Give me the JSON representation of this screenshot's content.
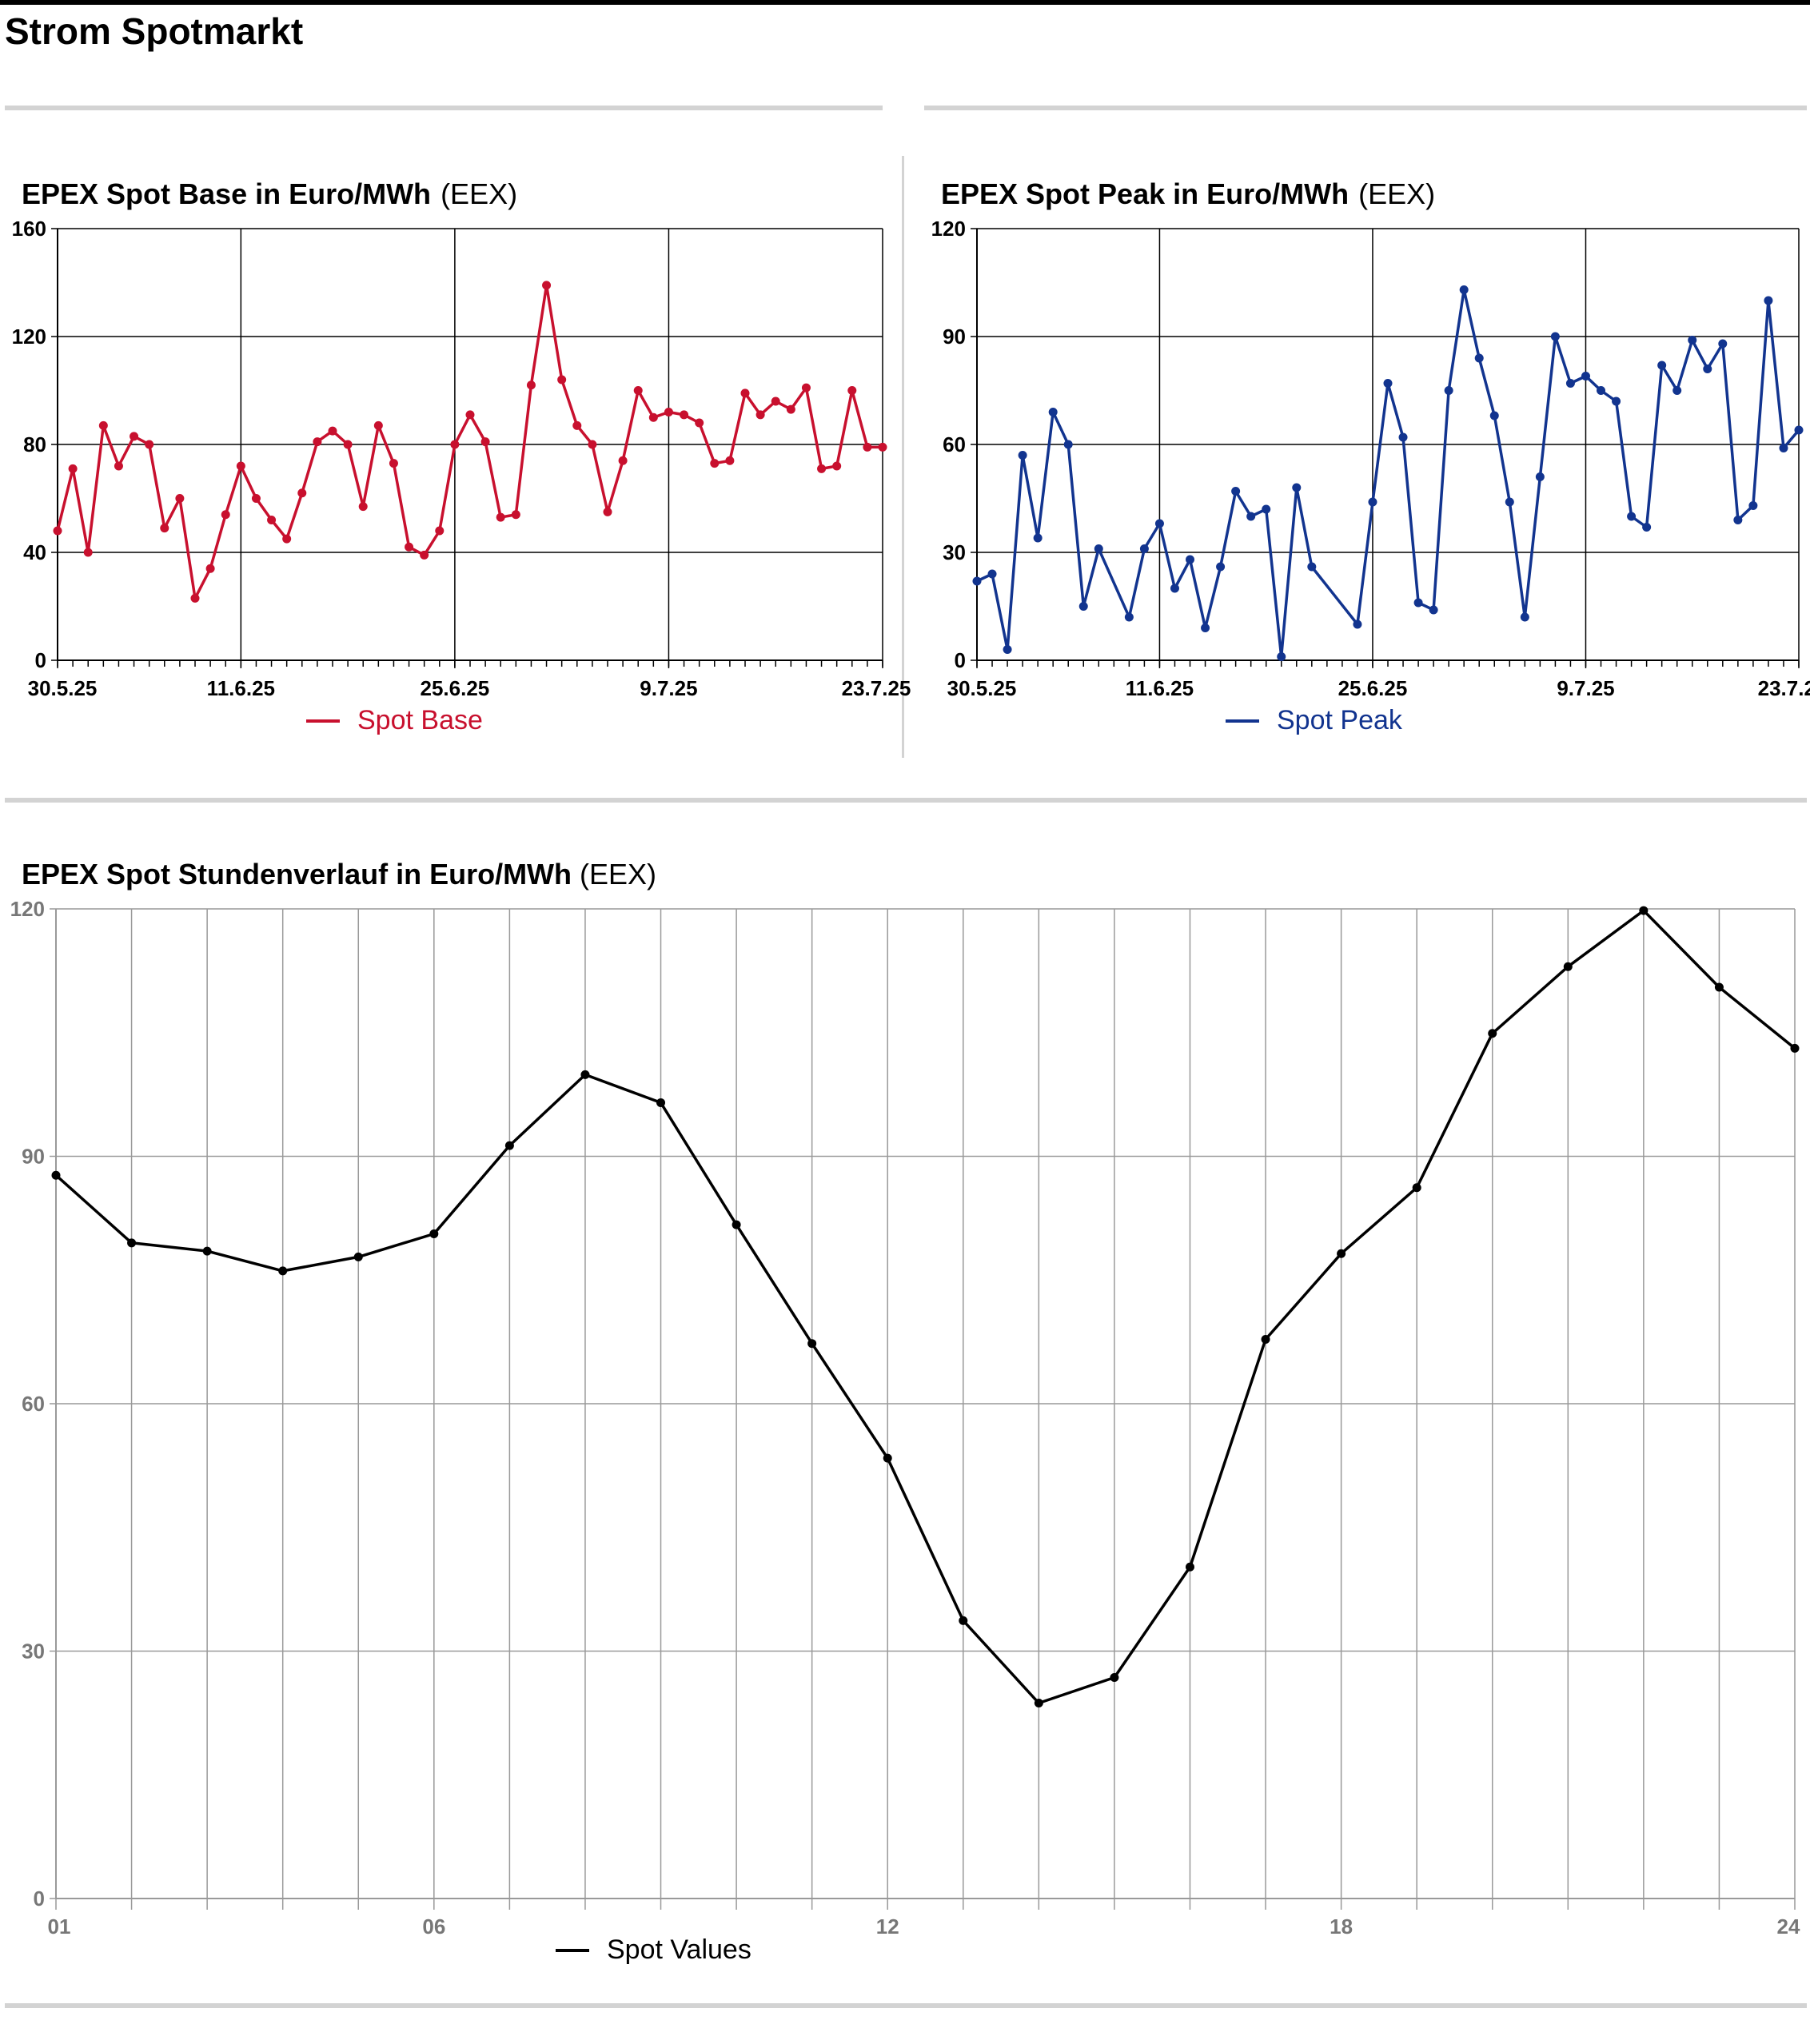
{
  "page_title": "Strom Spotmarkt",
  "colors": {
    "base": "#c8102e",
    "peak": "#12348f",
    "hourly": "#000000",
    "separator": "#d3d3d3"
  },
  "chart_data": [
    {
      "id": "base",
      "type": "line",
      "title": "EPEX Spot Base in Euro/MWh",
      "source": "(EEX)",
      "xlabel": "",
      "ylabel": "",
      "x_tick_labels": [
        "30.5.25",
        "11.6.25",
        "25.6.25",
        "9.7.25",
        "23.7.25"
      ],
      "ylim": [
        0,
        160
      ],
      "y_ticks": [
        0,
        40,
        80,
        120,
        160
      ],
      "grid": true,
      "legend_position": "bottom-center",
      "series": [
        {
          "name": "Spot Base",
          "values": [
            48,
            71,
            40,
            87,
            72,
            83,
            80,
            49,
            60,
            23,
            34,
            54,
            72,
            60,
            52,
            45,
            62,
            81,
            85,
            80,
            57,
            87,
            73,
            42,
            39,
            48,
            80,
            91,
            81,
            53,
            54,
            102,
            139,
            104,
            87,
            80,
            55,
            74,
            100,
            90,
            92,
            91,
            88,
            73,
            74,
            99,
            91,
            96,
            93,
            101,
            71,
            72,
            100,
            79,
            79
          ]
        }
      ]
    },
    {
      "id": "peak",
      "type": "line",
      "title": "EPEX Spot Peak in Euro/MWh",
      "source": "(EEX)",
      "xlabel": "",
      "ylabel": "",
      "x_tick_labels": [
        "30.5.25",
        "11.6.25",
        "25.6.25",
        "9.7.25",
        "23.7.25"
      ],
      "ylim": [
        0,
        120
      ],
      "y_ticks": [
        0,
        30,
        60,
        90,
        120
      ],
      "grid": true,
      "legend_position": "bottom-center",
      "series": [
        {
          "name": "Spot Peak",
          "values": [
            22,
            24,
            3,
            57,
            34,
            69,
            60,
            15,
            31,
            null,
            12,
            31,
            38,
            20,
            28,
            9,
            26,
            47,
            40,
            42,
            1,
            48,
            26,
            null,
            null,
            10,
            44,
            77,
            62,
            16,
            14,
            75,
            103,
            84,
            68,
            44,
            12,
            51,
            90,
            77,
            79,
            75,
            72,
            40,
            37,
            82,
            75,
            89,
            81,
            88,
            39,
            43,
            100,
            59,
            64
          ]
        }
      ]
    },
    {
      "id": "hourly",
      "type": "line",
      "title": "EPEX Spot Stundenverlauf in Euro/MWh",
      "source": "(EEX)",
      "xlabel": "",
      "ylabel": "",
      "x": [
        1,
        2,
        3,
        4,
        5,
        6,
        7,
        8,
        9,
        10,
        11,
        12,
        13,
        14,
        15,
        16,
        17,
        18,
        19,
        20,
        21,
        22,
        23,
        24
      ],
      "x_tick_labels": [
        "01",
        "06",
        "12",
        "18",
        "24"
      ],
      "ylim": [
        0,
        120
      ],
      "y_ticks": [
        0,
        30,
        60,
        90,
        120
      ],
      "grid": true,
      "legend_position": "bottom-center",
      "series": [
        {
          "name": "Spot Values",
          "values": [
            87.7,
            79.5,
            78.5,
            76.1,
            77.8,
            80.6,
            91.3,
            99.9,
            96.5,
            81.7,
            67.3,
            53.4,
            33.7,
            23.7,
            26.8,
            40.2,
            67.8,
            78.2,
            86.2,
            104.9,
            113.0,
            119.8,
            110.5,
            103.1
          ]
        }
      ]
    }
  ]
}
